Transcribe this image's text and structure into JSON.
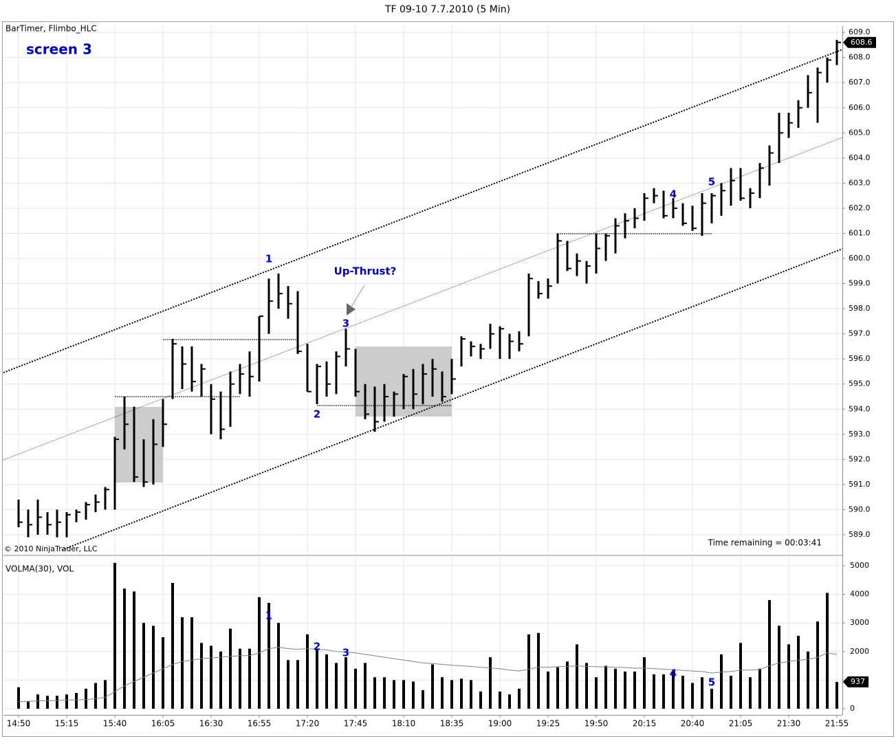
{
  "chart_data": [
    {
      "type": "hlc",
      "title": "TF 09-10  7.7.2010 (5 Min)",
      "indicator_label": "BarTimer, Flimbo_HLC",
      "watermark": "screen 3",
      "copyright": "© 2010 NinjaTrader, LLC",
      "timer": "Time remaining = 00:03:41",
      "annotations": [
        "1",
        "2",
        "3",
        "Up-Thrust?",
        "4",
        "5"
      ],
      "color": "#000000",
      "grid": true,
      "high": [
        590.4,
        590.0,
        590.4,
        589.9,
        590.0,
        589.9,
        590.0,
        590.3,
        590.6,
        590.9,
        592.9,
        594.5,
        594.1,
        592.8,
        593.6,
        594.4,
        596.8,
        596.5,
        596.5,
        595.8,
        595.0,
        594.7,
        595.5,
        595.8,
        596.3,
        597.7,
        599.2,
        599.4,
        598.9,
        598.7,
        596.6,
        595.8,
        595.9,
        596.3,
        597.2,
        596.4,
        595.0,
        594.9,
        595.0,
        594.7,
        595.4,
        595.6,
        595.8,
        596.0,
        595.5,
        596.0,
        596.9,
        596.7,
        596.6,
        597.4,
        597.3,
        597.0,
        597.1,
        599.4,
        599.1,
        599.2,
        601.0,
        600.7,
        600.2,
        599.9,
        601.0,
        601.0,
        601.6,
        601.8,
        602.0,
        602.6,
        602.8,
        602.7,
        602.4,
        602.2,
        602.1,
        602.6,
        602.6,
        603.0,
        603.6,
        603.6,
        602.8,
        603.8,
        604.5,
        605.8,
        605.8,
        606.3,
        607.3,
        607.6,
        608.0,
        608.7
      ],
      "low": [
        589.3,
        588.9,
        589.0,
        589.0,
        588.9,
        588.9,
        589.5,
        589.6,
        589.9,
        590.0,
        590.0,
        592.4,
        591.1,
        590.9,
        591.0,
        592.5,
        594.4,
        594.8,
        594.7,
        594.5,
        593.0,
        592.8,
        593.3,
        594.6,
        594.5,
        595.1,
        597.0,
        598.0,
        597.6,
        596.2,
        594.7,
        594.2,
        594.5,
        594.6,
        595.7,
        594.5,
        593.6,
        593.1,
        593.5,
        593.7,
        594.0,
        594.0,
        594.2,
        594.5,
        594.3,
        594.6,
        595.7,
        596.1,
        596.0,
        596.4,
        596.0,
        596.0,
        596.3,
        596.9,
        598.4,
        598.4,
        599.0,
        599.5,
        599.3,
        599.0,
        599.4,
        599.9,
        600.2,
        600.8,
        601.2,
        601.5,
        602.2,
        601.6,
        601.6,
        601.3,
        601.1,
        600.9,
        601.4,
        601.7,
        602.1,
        602.3,
        602.0,
        602.4,
        602.9,
        603.8,
        604.8,
        605.2,
        606.0,
        605.4,
        607.0,
        607.7
      ],
      "close": [
        589.5,
        589.4,
        589.7,
        589.4,
        589.5,
        589.8,
        589.9,
        590.2,
        590.3,
        590.8,
        592.8,
        593.4,
        591.3,
        591.1,
        592.6,
        593.4,
        596.6,
        595.8,
        595.1,
        595.6,
        594.4,
        593.2,
        595.0,
        595.4,
        595.3,
        597.7,
        598.3,
        598.6,
        598.2,
        596.3,
        594.7,
        595.7,
        595.0,
        596.1,
        596.4,
        594.7,
        593.8,
        593.5,
        594.5,
        594.6,
        595.3,
        594.6,
        595.4,
        595.6,
        594.5,
        595.2,
        596.8,
        596.5,
        596.4,
        597.0,
        597.2,
        596.7,
        596.6,
        599.2,
        598.6,
        598.9,
        600.7,
        599.6,
        599.9,
        599.7,
        600.4,
        600.9,
        601.3,
        601.5,
        601.6,
        602.4,
        602.5,
        601.7,
        602.0,
        601.4,
        601.2,
        602.2,
        602.5,
        602.7,
        603.1,
        602.4,
        602.6,
        603.6,
        604.2,
        605.0,
        605.4,
        606.0,
        606.6,
        607.4,
        607.9,
        608.6
      ],
      "ylim": [
        588.26,
        609.25
      ],
      "yticks": [
        {
          "value": 589,
          "label": "589.0"
        },
        {
          "value": 590,
          "label": "590.0"
        },
        {
          "value": 591,
          "label": "591.0"
        },
        {
          "value": 592,
          "label": "592.0"
        },
        {
          "value": 593,
          "label": "593.0"
        },
        {
          "value": 594,
          "label": "594.0"
        },
        {
          "value": 595,
          "label": "595.0"
        },
        {
          "value": 596,
          "label": "596.0"
        },
        {
          "value": 597,
          "label": "597.0"
        },
        {
          "value": 598,
          "label": "598.0"
        },
        {
          "value": 599,
          "label": "599.0"
        },
        {
          "value": 600,
          "label": "600.0"
        },
        {
          "value": 601,
          "label": "601.0"
        },
        {
          "value": 602,
          "label": "602.0"
        },
        {
          "value": 603,
          "label": "603.0"
        },
        {
          "value": 604,
          "label": "604.0"
        },
        {
          "value": 605,
          "label": "605.0"
        },
        {
          "value": 606,
          "label": "606.0"
        },
        {
          "value": 607,
          "label": "607.0"
        },
        {
          "value": 608,
          "label": "608.0"
        },
        {
          "value": 609,
          "label": "609.0"
        }
      ]
    },
    {
      "type": "bar",
      "indicator_label": "VOLMA(30), VOL",
      "annotations": [
        "1",
        "2",
        "3",
        "4",
        "5"
      ],
      "color": "#000000",
      "ma_color": "#808080",
      "grid": true,
      "categories": [
        "14:50",
        null,
        null,
        null,
        null,
        "15:15",
        null,
        null,
        null,
        null,
        "15:40",
        null,
        null,
        null,
        null,
        "16:05",
        null,
        null,
        null,
        null,
        "16:30",
        null,
        null,
        null,
        null,
        "16:55",
        null,
        null,
        null,
        null,
        "17:20",
        null,
        null,
        null,
        null,
        "17:45",
        null,
        null,
        null,
        null,
        "18:10",
        null,
        null,
        null,
        null,
        "18:35",
        null,
        null,
        null,
        null,
        "19:00",
        null,
        null,
        null,
        null,
        "19:25",
        null,
        null,
        null,
        null,
        "19:50",
        null,
        null,
        null,
        null,
        "20:15",
        null,
        null,
        null,
        null,
        "20:40",
        null,
        null,
        null,
        null,
        "21:05",
        null,
        null,
        null,
        null,
        "21:30",
        null,
        null,
        null,
        null,
        "21:55"
      ],
      "volume": [
        750,
        250,
        500,
        450,
        450,
        500,
        550,
        700,
        900,
        1000,
        5100,
        4200,
        4100,
        3000,
        2900,
        2500,
        4400,
        3200,
        3200,
        2300,
        2200,
        2000,
        2800,
        2100,
        2100,
        3900,
        3700,
        3000,
        1700,
        1700,
        2600,
        2100,
        1900,
        1600,
        1800,
        1400,
        1600,
        1100,
        1100,
        1000,
        1000,
        950,
        650,
        1550,
        1100,
        1000,
        1050,
        1000,
        600,
        1800,
        600,
        500,
        700,
        2600,
        2650,
        1300,
        1450,
        1650,
        2250,
        1600,
        1100,
        1500,
        1400,
        1300,
        1300,
        1800,
        1200,
        1200,
        1300,
        1150,
        900,
        1100,
        700,
        1900,
        1150,
        2300,
        1100,
        1400,
        3800,
        2900,
        2250,
        2550,
        2000,
        3050,
        4050,
        937
      ],
      "volma": [
        250,
        260,
        270,
        280,
        290,
        300,
        310,
        320,
        350,
        400,
        600,
        800,
        950,
        1100,
        1250,
        1400,
        1550,
        1650,
        1700,
        1750,
        1780,
        1800,
        1830,
        1850,
        1860,
        1950,
        2100,
        2150,
        2100,
        2080,
        2100,
        2080,
        2060,
        2000,
        1980,
        1950,
        1900,
        1850,
        1800,
        1750,
        1700,
        1650,
        1600,
        1580,
        1550,
        1520,
        1500,
        1480,
        1450,
        1420,
        1400,
        1350,
        1320,
        1380,
        1450,
        1450,
        1470,
        1480,
        1500,
        1480,
        1470,
        1460,
        1450,
        1440,
        1420,
        1420,
        1400,
        1380,
        1360,
        1340,
        1320,
        1300,
        1250,
        1280,
        1300,
        1350,
        1350,
        1370,
        1500,
        1600,
        1650,
        1700,
        1720,
        1800,
        1950,
        1900
      ],
      "ylim": [
        -96,
        5313
      ],
      "yticks": [
        0,
        1000,
        2000,
        3000,
        4000,
        5000
      ]
    }
  ]
}
